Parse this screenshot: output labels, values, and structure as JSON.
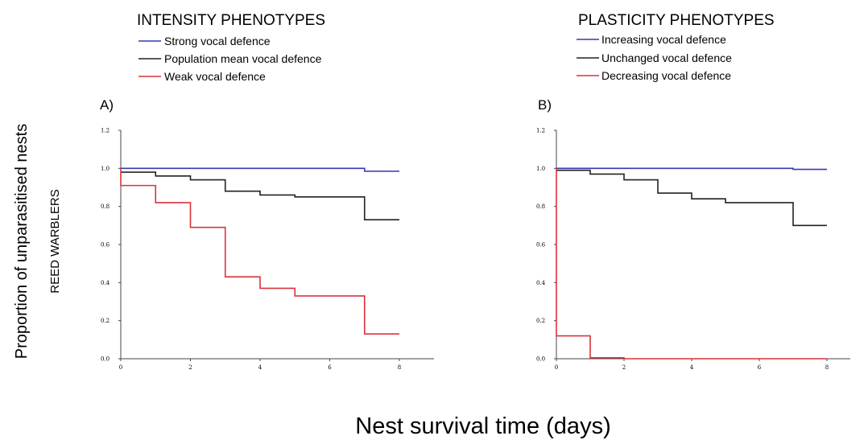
{
  "ylabel": "Proportion of unparasitised nests",
  "ylabel_sub": "REED WARBLERS",
  "xlabel": "Nest survival time (days)",
  "chart_data": [
    {
      "type": "line",
      "step": true,
      "panel_label": "A)",
      "title": "INTENSITY PHENOTYPES",
      "xlim": [
        0,
        8
      ],
      "ylim": [
        0.0,
        1.2
      ],
      "x_ticks": [
        "0",
        "2",
        "4",
        "6",
        "8"
      ],
      "y_ticks": [
        "0.0",
        "0.2",
        "0.4",
        "0.6",
        "0.8",
        "1.0",
        "1.2"
      ],
      "series": [
        {
          "name": "Strong vocal defence",
          "color": "#3636b8",
          "x": [
            0,
            7,
            8
          ],
          "y": [
            1.0,
            0.985,
            0.985
          ]
        },
        {
          "name": "Population mean vocal defence",
          "color": "#222222",
          "x": [
            0,
            1,
            2,
            3,
            4,
            5,
            7,
            8
          ],
          "y": [
            0.98,
            0.96,
            0.94,
            0.88,
            0.86,
            0.85,
            0.73,
            0.73
          ]
        },
        {
          "name": "Weak vocal defence",
          "color": "#d9343a",
          "x": [
            0,
            0,
            1,
            2,
            3,
            4,
            5,
            7,
            8
          ],
          "y": [
            1.0,
            0.91,
            0.82,
            0.69,
            0.43,
            0.37,
            0.33,
            0.13,
            0.13
          ]
        }
      ]
    },
    {
      "type": "line",
      "step": true,
      "panel_label": "B)",
      "title": "PLASTICITY PHENOTYPES",
      "xlim": [
        0,
        8
      ],
      "ylim": [
        0.0,
        1.2
      ],
      "x_ticks": [
        "0",
        "2",
        "4",
        "6",
        "8"
      ],
      "y_ticks": [
        "0.0",
        "0.2",
        "0.4",
        "0.6",
        "0.8",
        "1.0",
        "1.2"
      ],
      "series": [
        {
          "name": "Increasing vocal defence",
          "color": "#3636b8",
          "x": [
            0,
            7,
            8
          ],
          "y": [
            1.0,
            0.995,
            0.995
          ]
        },
        {
          "name": "Unchanged vocal defence",
          "color": "#222222",
          "x": [
            0,
            1,
            2,
            3,
            4,
            5,
            7,
            8
          ],
          "y": [
            0.99,
            0.97,
            0.94,
            0.87,
            0.84,
            0.82,
            0.7,
            0.7
          ]
        },
        {
          "name": "Decreasing vocal defence",
          "color": "#d9343a",
          "x": [
            0,
            0,
            1,
            2,
            8
          ],
          "y": [
            1.0,
            0.12,
            0.005,
            0.0,
            0.0
          ]
        }
      ]
    }
  ]
}
